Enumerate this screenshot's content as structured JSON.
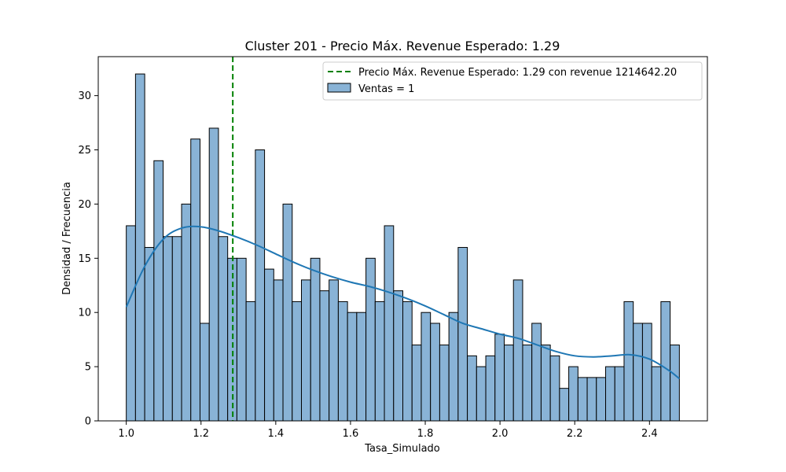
{
  "chart_data": {
    "type": "bar",
    "title": "Cluster 201 - Precio Máx. Revenue Esperado: 1.29",
    "xlabel": "Tasa_Simulado",
    "ylabel": "Densidad / Frecuencia",
    "xlim": [
      0.925,
      2.555
    ],
    "ylim": [
      0,
      33.6
    ],
    "xticks": [
      1.0,
      1.2,
      1.4,
      1.6,
      1.8,
      2.0,
      2.2,
      2.4
    ],
    "xtick_labels": [
      "1.0",
      "1.2",
      "1.4",
      "1.6",
      "1.8",
      "2.0",
      "2.2",
      "2.4"
    ],
    "yticks": [
      0,
      5,
      10,
      15,
      20,
      25,
      30
    ],
    "ytick_labels": [
      "0",
      "5",
      "10",
      "15",
      "20",
      "25",
      "30"
    ],
    "grid": false,
    "legend_position": "top-right",
    "bins": {
      "start": 1.0,
      "end": 2.48,
      "counts": [
        18,
        32,
        16,
        24,
        17,
        17,
        20,
        26,
        9,
        27,
        17,
        15,
        15,
        11,
        25,
        14,
        13,
        20,
        11,
        13,
        15,
        12,
        13,
        11,
        10,
        10,
        15,
        11,
        18,
        12,
        11,
        7,
        10,
        9,
        7,
        10,
        16,
        6,
        5,
        6,
        8,
        7,
        13,
        7,
        9,
        7,
        6,
        3,
        5,
        4,
        4,
        4,
        5,
        5,
        11,
        9,
        9,
        5,
        11,
        7
      ]
    },
    "kde": {
      "x": [
        1.0,
        1.05,
        1.1,
        1.15,
        1.2,
        1.25,
        1.3,
        1.35,
        1.4,
        1.45,
        1.5,
        1.55,
        1.6,
        1.65,
        1.7,
        1.75,
        1.8,
        1.85,
        1.9,
        1.95,
        2.0,
        2.05,
        2.1,
        2.15,
        2.2,
        2.25,
        2.3,
        2.35,
        2.4,
        2.45,
        2.48
      ],
      "y": [
        10.5,
        14.3,
        16.8,
        17.8,
        17.9,
        17.5,
        16.9,
        16.2,
        15.4,
        14.6,
        13.9,
        13.3,
        12.8,
        12.4,
        11.9,
        11.3,
        10.6,
        9.8,
        9.0,
        8.5,
        8.0,
        7.6,
        7.0,
        6.4,
        6.0,
        5.9,
        6.0,
        6.1,
        5.7,
        4.7,
        3.9
      ]
    },
    "vline": {
      "x": 1.285,
      "color": "#008000"
    },
    "colors": {
      "bar_fill": "#89b3d6",
      "bar_edge": "#000000",
      "kde": "#1f77b4"
    },
    "legend": [
      {
        "label": "Precio Máx. Revenue Esperado: 1.29 con revenue 1214642.20",
        "type": "dashed-line"
      },
      {
        "label": "Ventas = 1",
        "type": "patch"
      }
    ]
  }
}
